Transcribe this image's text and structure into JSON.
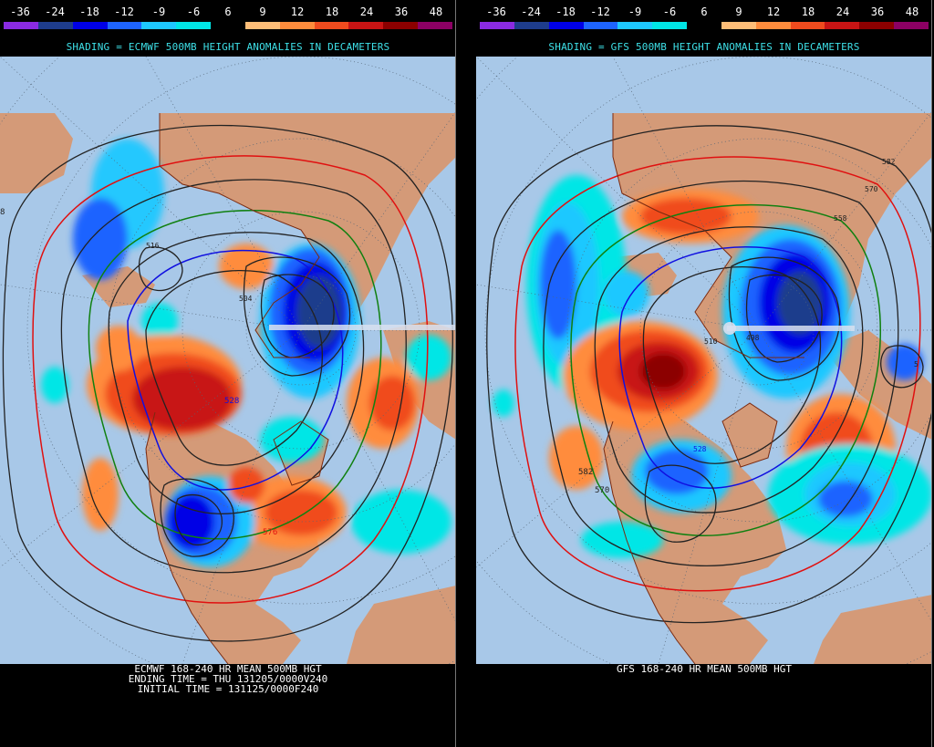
{
  "colorbar": {
    "labels": [
      "-36",
      "-24",
      "-18",
      "-12",
      "-9",
      "-6",
      "6",
      "9",
      "12",
      "18",
      "24",
      "36",
      "48"
    ],
    "colors": [
      "#8a2be2",
      "#1e3c8c",
      "#0000e6",
      "#1e64ff",
      "#1ec8ff",
      "#00e6e6",
      "#000000",
      "#ffbe78",
      "#ff8c3c",
      "#f04b1e",
      "#c81414",
      "#8c0000",
      "#8c0064"
    ]
  },
  "colors": {
    "ocean": "#a8c8e8",
    "land": "#d49a78",
    "coast": "#7a2a10",
    "contour": "#222222",
    "contour_red": "#e01010",
    "contour_green": "#108010",
    "contour_blue": "#1010e0"
  },
  "panels": [
    {
      "id": "ecmwf",
      "shading_title": "SHADING = ECMWF 500MB HEIGHT ANOMALIES IN DECAMETERS",
      "caption_lines": [
        "ECMWF 168-240 HR MEAN 500MB HGT",
        "ENDING TIME = THU 131205/0000V240",
        "INITIAL TIME = 131125/0000F240"
      ],
      "contour_labels": [
        "528",
        "576",
        "8",
        "516",
        "504"
      ]
    },
    {
      "id": "gfs",
      "shading_title": "SHADING = GFS 500MB HEIGHT ANOMALIES IN DECAMETERS",
      "caption_lines": [
        "GFS 168-240 HR MEAN 500MB HGT"
      ],
      "contour_labels": [
        "582",
        "570",
        "558",
        "582",
        "570",
        "528",
        "510",
        "498",
        "5"
      ]
    }
  ]
}
